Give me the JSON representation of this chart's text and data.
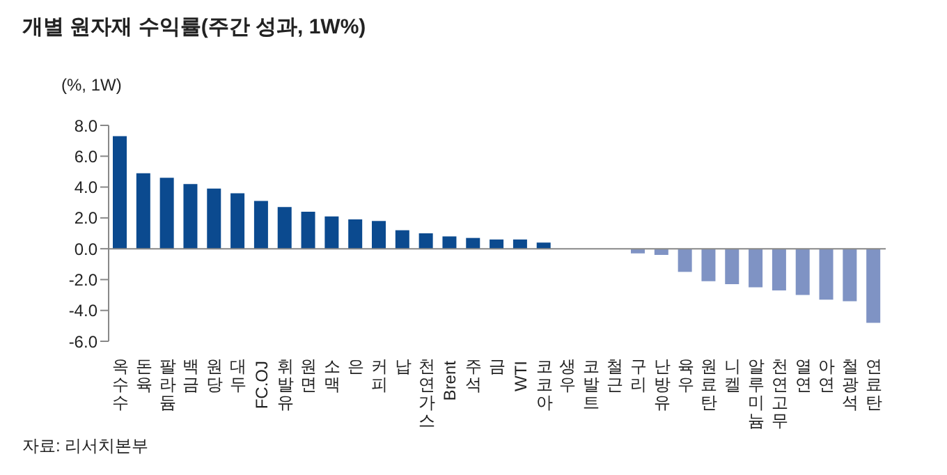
{
  "chart_data": {
    "type": "bar",
    "title": "개별 원자재 수익률(주간 성과, 1W%)",
    "ylabel": "(%, 1W)",
    "categories": [
      "옥수수",
      "돈육",
      "팔라듐",
      "백금",
      "원당",
      "대두",
      "FC.OJ",
      "휘발유",
      "원면",
      "소맥",
      "은",
      "커피",
      "납",
      "천연가스",
      "Brent",
      "주석",
      "금",
      "WTI",
      "코코아",
      "생우",
      "코발트",
      "철근",
      "구리",
      "난방유",
      "육우",
      "원료탄",
      "니켈",
      "알루미늄",
      "천연고무",
      "열연",
      "아연",
      "철광석",
      "연료탄"
    ],
    "values": [
      7.3,
      4.9,
      4.6,
      4.2,
      3.9,
      3.6,
      3.1,
      2.7,
      2.4,
      2.1,
      1.9,
      1.8,
      1.2,
      1.0,
      0.8,
      0.7,
      0.6,
      0.6,
      0.4,
      0,
      0,
      0,
      -0.3,
      -0.4,
      -1.5,
      -2.1,
      -2.3,
      -2.5,
      -2.7,
      -3.0,
      -3.3,
      -3.4,
      -4.8
    ],
    "colors": [
      "#0b4a8f",
      "#0b4a8f",
      "#0b4a8f",
      "#0b4a8f",
      "#0b4a8f",
      "#0b4a8f",
      "#0b4a8f",
      "#0b4a8f",
      "#0b4a8f",
      "#0b4a8f",
      "#0b4a8f",
      "#0b4a8f",
      "#0b4a8f",
      "#0b4a8f",
      "#0b4a8f",
      "#0b4a8f",
      "#0b4a8f",
      "#0b4a8f",
      "#0b4a8f",
      "#0b4a8f",
      "#7f93c4",
      "#7f93c4",
      "#7f93c4",
      "#7f93c4",
      "#7f93c4",
      "#7f93c4",
      "#7f93c4",
      "#7f93c4",
      "#7f93c4",
      "#7f93c4",
      "#7f93c4",
      "#7f93c4",
      "#7f93c4"
    ],
    "ylim": [
      -6,
      8
    ],
    "yticks": [
      {
        "value": -6,
        "label": "-6.0"
      },
      {
        "value": -4,
        "label": "-4.0"
      },
      {
        "value": -2,
        "label": "-2.0"
      },
      {
        "value": 0,
        "label": "0.0"
      },
      {
        "value": 2,
        "label": "2.0"
      },
      {
        "value": 4,
        "label": "4.0"
      },
      {
        "value": 6,
        "label": "6.0"
      },
      {
        "value": 8,
        "label": "8.0"
      }
    ],
    "annotations": [
      "자료: 리서치본부"
    ]
  }
}
